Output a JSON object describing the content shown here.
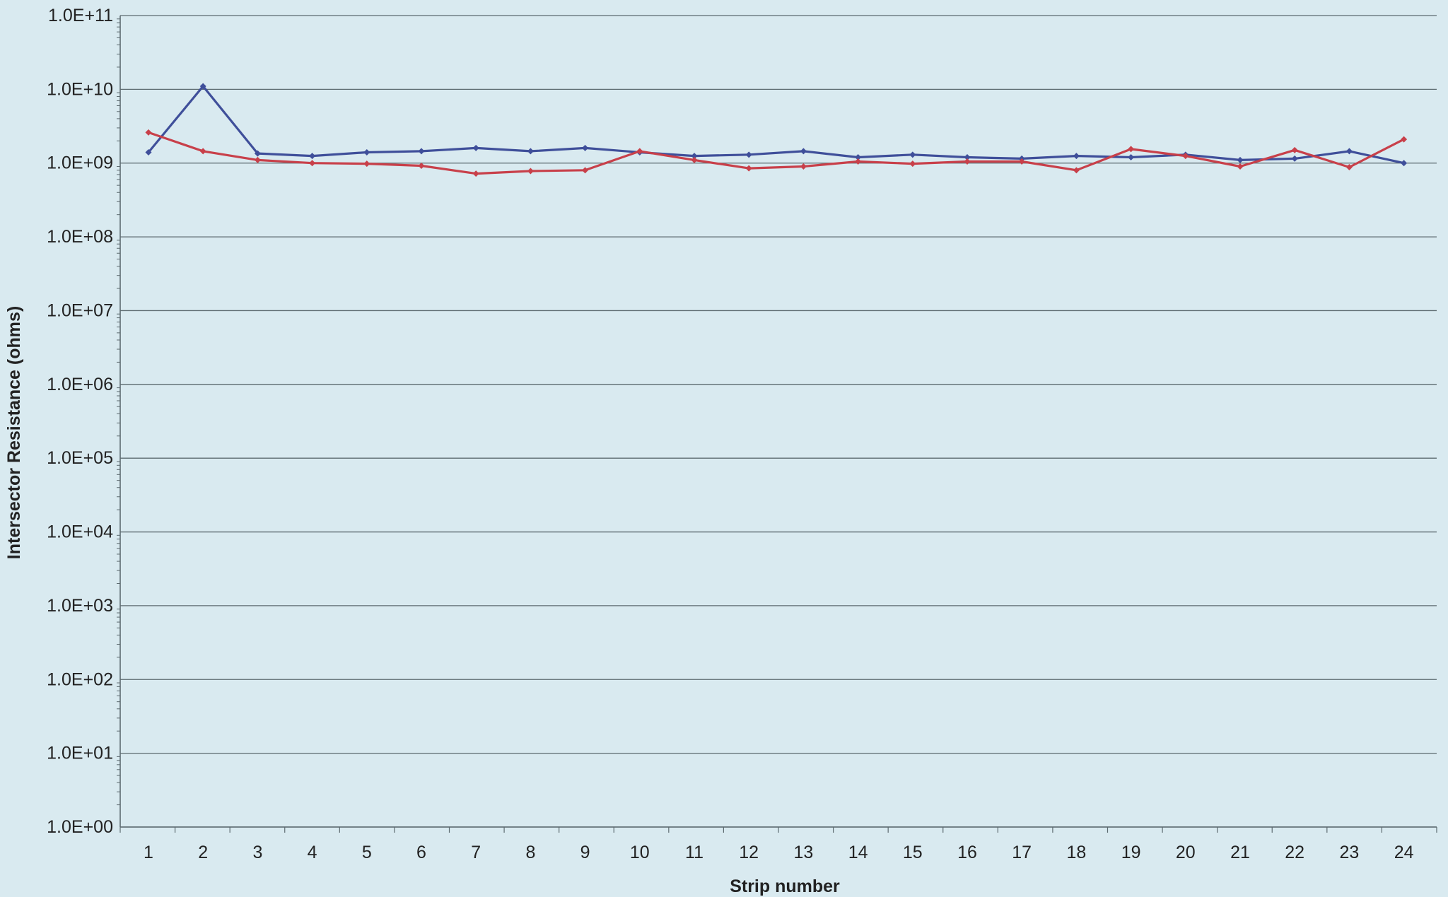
{
  "chart_data": {
    "type": "line",
    "title": "",
    "xlabel": "Strip number",
    "ylabel": "Intersector Resistance (ohms)",
    "x": [
      1,
      2,
      3,
      4,
      5,
      6,
      7,
      8,
      9,
      10,
      11,
      12,
      13,
      14,
      15,
      16,
      17,
      18,
      19,
      20,
      21,
      22,
      23,
      24
    ],
    "y_scale": "log",
    "ylim": [
      1,
      100000000000
    ],
    "y_ticks": [
      1,
      10,
      100,
      1000,
      10000,
      100000,
      1000000,
      10000000,
      100000000,
      1000000000,
      10000000000,
      100000000000
    ],
    "y_tick_labels": [
      "1.0E+00",
      "1.0E+01",
      "1.0E+02",
      "1.0E+03",
      "1.0E+04",
      "1.0E+05",
      "1.0E+06",
      "1.0E+07",
      "1.0E+08",
      "1.0E+09",
      "1.0E+10",
      "1.0E+11"
    ],
    "x_tick_labels": [
      "1",
      "2",
      "3",
      "4",
      "5",
      "6",
      "7",
      "8",
      "9",
      "10",
      "11",
      "12",
      "13",
      "14",
      "15",
      "16",
      "17",
      "18",
      "19",
      "20",
      "21",
      "22",
      "23",
      "24"
    ],
    "grid": "horizontal",
    "legend": "none",
    "series": [
      {
        "color": "#3f4f9a",
        "values": [
          1400000000.0,
          11000000000.0,
          1350000000.0,
          1250000000.0,
          1400000000.0,
          1450000000.0,
          1600000000.0,
          1450000000.0,
          1600000000.0,
          1400000000.0,
          1250000000.0,
          1300000000.0,
          1450000000.0,
          1200000000.0,
          1300000000.0,
          1200000000.0,
          1150000000.0,
          1250000000.0,
          1200000000.0,
          1300000000.0,
          1100000000.0,
          1150000000.0,
          1450000000.0,
          1000000000.0
        ]
      },
      {
        "color": "#c8404a",
        "values": [
          2600000000.0,
          1450000000.0,
          1100000000.0,
          1000000000.0,
          980000000.0,
          920000000.0,
          720000000.0,
          780000000.0,
          800000000.0,
          1450000000.0,
          1100000000.0,
          850000000.0,
          900000000.0,
          1050000000.0,
          980000000.0,
          1050000000.0,
          1050000000.0,
          800000000.0,
          1550000000.0,
          1250000000.0,
          900000000.0,
          1500000000.0,
          880000000.0,
          2100000000.0
        ]
      }
    ]
  }
}
